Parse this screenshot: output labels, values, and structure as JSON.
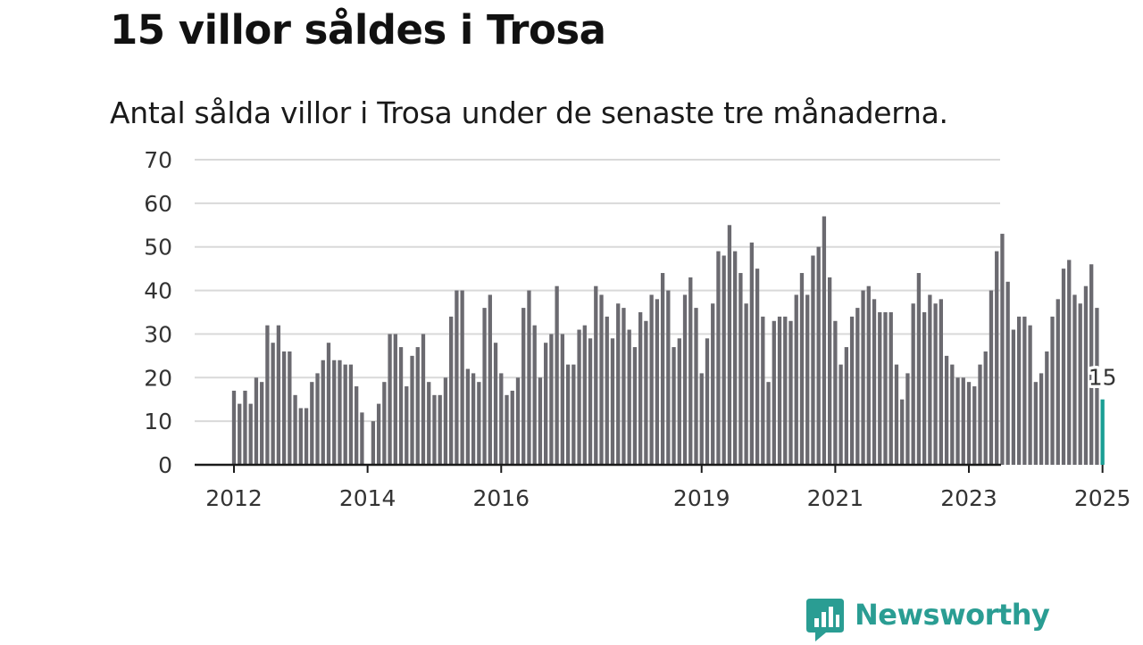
{
  "header": {
    "title": "15 villor såldes i Trosa",
    "subtitle": "Antal sålda villor i Trosa under de senaste tre månaderna."
  },
  "brand": {
    "name": "Newsworthy",
    "logo_icon": "bar-chart-speech-bubble-icon",
    "color": "#2a9d93"
  },
  "chart_data": {
    "type": "bar",
    "title": "",
    "xlabel": "",
    "ylabel": "",
    "ylim": [
      0,
      70
    ],
    "yticks": [
      0,
      10,
      20,
      30,
      40,
      50,
      60,
      70
    ],
    "xtick_labels": [
      "2012",
      "2014",
      "2016",
      "2019",
      "2021",
      "2023",
      "2025"
    ],
    "x_start": "2012-01",
    "frequency": "monthly",
    "bar_color": "#6b6a70",
    "highlight_color": "#1a9e94",
    "grid": true,
    "highlight_label": "15",
    "values": [
      17,
      14,
      17,
      14,
      20,
      19,
      32,
      28,
      32,
      26,
      26,
      16,
      13,
      13,
      19,
      21,
      24,
      28,
      24,
      24,
      23,
      23,
      18,
      12,
      0,
      10,
      14,
      19,
      30,
      30,
      27,
      18,
      25,
      27,
      30,
      19,
      16,
      16,
      20,
      34,
      40,
      40,
      22,
      21,
      19,
      36,
      39,
      28,
      21,
      16,
      17,
      20,
      36,
      40,
      32,
      20,
      28,
      30,
      41,
      30,
      23,
      23,
      31,
      32,
      29,
      41,
      39,
      34,
      29,
      37,
      36,
      31,
      27,
      35,
      33,
      39,
      38,
      44,
      40,
      27,
      29,
      39,
      43,
      36,
      21,
      29,
      37,
      49,
      48,
      55,
      49,
      44,
      37,
      51,
      45,
      34,
      19,
      33,
      34,
      34,
      33,
      39,
      44,
      39,
      48,
      50,
      57,
      43,
      33,
      23,
      27,
      34,
      36,
      40,
      41,
      38,
      35,
      35,
      35,
      23,
      15,
      21,
      37,
      44,
      35,
      39,
      37,
      38,
      25,
      23,
      20,
      20,
      19,
      18,
      23,
      26,
      40,
      49,
      53,
      42,
      31,
      34,
      34,
      32,
      19,
      21,
      26,
      34,
      38,
      45,
      47,
      39,
      37,
      41,
      46,
      36,
      15
    ]
  }
}
